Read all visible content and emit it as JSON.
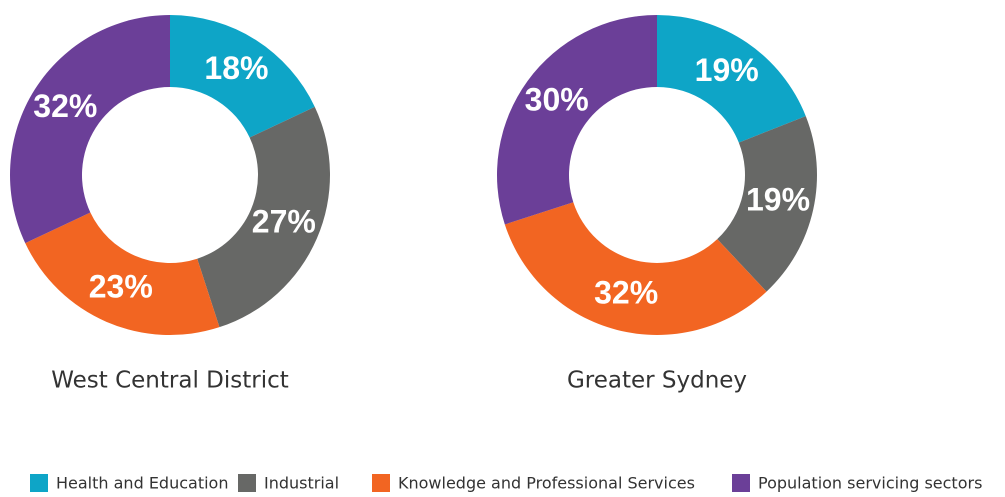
{
  "chart_data": [
    {
      "type": "pie",
      "title": "West Central District",
      "categories": [
        "Health and Education",
        "Industrial",
        "Knowledge and Professional Services",
        "Population servicing sectors"
      ],
      "values": [
        18,
        27,
        23,
        32
      ],
      "value_labels": [
        "18%",
        "27%",
        "23%",
        "32%"
      ],
      "colors": [
        "#0ea5c7",
        "#676866",
        "#f26522",
        "#6b3f98"
      ]
    },
    {
      "type": "pie",
      "title": "Greater Sydney",
      "categories": [
        "Health and Education",
        "Industrial",
        "Knowledge and Professional Services",
        "Population servicing sectors"
      ],
      "values": [
        19,
        19,
        32,
        30
      ],
      "value_labels": [
        "19%",
        "19%",
        "32%",
        "30%"
      ],
      "colors": [
        "#0ea5c7",
        "#676866",
        "#f26522",
        "#6b3f98"
      ]
    }
  ]
}
